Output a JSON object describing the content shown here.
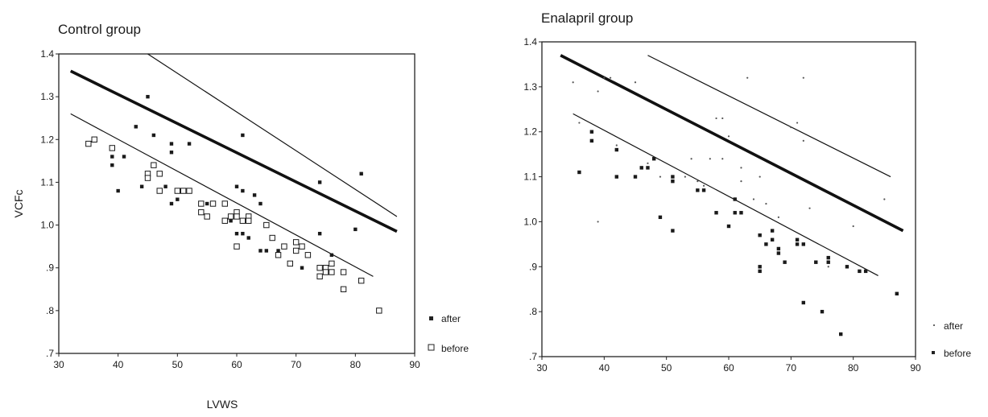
{
  "chart_data": [
    {
      "type": "scatter",
      "title": "Control group",
      "xlabel": "LVWS",
      "ylabel": "VCFc",
      "xlim": [
        30,
        90
      ],
      "ylim": [
        0.7,
        1.4
      ],
      "x_ticks": [
        "30",
        "40",
        "50",
        "60",
        "70",
        "80",
        "90"
      ],
      "y_ticks": [
        ".7",
        ".8",
        ".9",
        "1.0",
        "1.1",
        "1.2",
        "1.3",
        "1.4"
      ],
      "legend_position": "right",
      "series": [
        {
          "name": "after",
          "marker": "filled-square",
          "points": [
            [
              39,
              1.14
            ],
            [
              39,
              1.16
            ],
            [
              40,
              1.08
            ],
            [
              41,
              1.16
            ],
            [
              43,
              1.23
            ],
            [
              44,
              1.09
            ],
            [
              45,
              1.3
            ],
            [
              46,
              1.21
            ],
            [
              48,
              1.09
            ],
            [
              49,
              1.19
            ],
            [
              49,
              1.17
            ],
            [
              49,
              1.05
            ],
            [
              50,
              1.06
            ],
            [
              51,
              1.08
            ],
            [
              52,
              1.19
            ],
            [
              52,
              1.08
            ],
            [
              55,
              1.05
            ],
            [
              56,
              1.05
            ],
            [
              59,
              1.01
            ],
            [
              60,
              1.09
            ],
            [
              60,
              0.98
            ],
            [
              61,
              1.21
            ],
            [
              61,
              1.08
            ],
            [
              61,
              0.98
            ],
            [
              62,
              0.97
            ],
            [
              63,
              1.07
            ],
            [
              64,
              1.05
            ],
            [
              64,
              0.94
            ],
            [
              65,
              0.94
            ],
            [
              67,
              0.94
            ],
            [
              68,
              0.95
            ],
            [
              71,
              0.9
            ],
            [
              72,
              0.93
            ],
            [
              74,
              1.1
            ],
            [
              74,
              0.98
            ],
            [
              75,
              0.9
            ],
            [
              76,
              0.93
            ],
            [
              76,
              0.89
            ],
            [
              80,
              0.99
            ],
            [
              81,
              1.12
            ]
          ]
        },
        {
          "name": "before",
          "marker": "open-square",
          "points": [
            [
              35,
              1.19
            ],
            [
              36,
              1.2
            ],
            [
              39,
              1.18
            ],
            [
              45,
              1.12
            ],
            [
              45,
              1.11
            ],
            [
              46,
              1.14
            ],
            [
              47,
              1.12
            ],
            [
              47,
              1.08
            ],
            [
              50,
              1.08
            ],
            [
              51,
              1.08
            ],
            [
              52,
              1.08
            ],
            [
              54,
              1.05
            ],
            [
              54,
              1.03
            ],
            [
              55,
              1.02
            ],
            [
              56,
              1.05
            ],
            [
              58,
              1.05
            ],
            [
              58,
              1.01
            ],
            [
              59,
              1.02
            ],
            [
              60,
              1.03
            ],
            [
              60,
              1.02
            ],
            [
              60,
              0.95
            ],
            [
              61,
              1.01
            ],
            [
              62,
              1.02
            ],
            [
              62,
              1.01
            ],
            [
              65,
              1.0
            ],
            [
              66,
              0.97
            ],
            [
              67,
              0.93
            ],
            [
              68,
              0.95
            ],
            [
              69,
              0.91
            ],
            [
              70,
              0.96
            ],
            [
              70,
              0.94
            ],
            [
              71,
              0.95
            ],
            [
              72,
              0.93
            ],
            [
              74,
              0.9
            ],
            [
              74,
              0.88
            ],
            [
              75,
              0.9
            ],
            [
              75,
              0.89
            ],
            [
              76,
              0.91
            ],
            [
              76,
              0.89
            ],
            [
              78,
              0.89
            ],
            [
              78,
              0.85
            ],
            [
              81,
              0.87
            ],
            [
              84,
              0.8
            ]
          ]
        }
      ],
      "reference_lines": [
        {
          "style": "thick",
          "from": [
            32,
            1.36
          ],
          "to": [
            87,
            0.985
          ]
        },
        {
          "style": "thin",
          "from": [
            45,
            1.4
          ],
          "to": [
            87,
            1.02
          ]
        },
        {
          "style": "thin",
          "from": [
            32,
            1.26
          ],
          "to": [
            83,
            0.88
          ]
        }
      ]
    },
    {
      "type": "scatter",
      "title": "Enalapril group",
      "xlabel": "",
      "ylabel": "",
      "xlim": [
        30,
        90
      ],
      "ylim": [
        0.7,
        1.4
      ],
      "x_ticks": [
        "30",
        "40",
        "50",
        "60",
        "70",
        "80",
        "90"
      ],
      "y_ticks": [
        ".7",
        ".8",
        ".9",
        "1.0",
        "1.1",
        "1.2",
        "1.3",
        "1.4"
      ],
      "legend_position": "right",
      "series": [
        {
          "name": "after",
          "marker": "dot",
          "points": [
            [
              35,
              1.31
            ],
            [
              36,
              1.22
            ],
            [
              39,
              1.29
            ],
            [
              39,
              1.0
            ],
            [
              40,
              1.32
            ],
            [
              41,
              1.32
            ],
            [
              42,
              1.17
            ],
            [
              45,
              1.31
            ],
            [
              47,
              1.13
            ],
            [
              49,
              1.1
            ],
            [
              51,
              1.09
            ],
            [
              53,
              1.1
            ],
            [
              54,
              1.14
            ],
            [
              55,
              1.09
            ],
            [
              56,
              1.08
            ],
            [
              57,
              1.14
            ],
            [
              58,
              1.23
            ],
            [
              59,
              1.23
            ],
            [
              59,
              1.14
            ],
            [
              60,
              1.19
            ],
            [
              62,
              1.12
            ],
            [
              62,
              1.09
            ],
            [
              63,
              1.32
            ],
            [
              64,
              1.05
            ],
            [
              65,
              1.1
            ],
            [
              66,
              1.04
            ],
            [
              68,
              1.01
            ],
            [
              70,
              1.21
            ],
            [
              71,
              1.22
            ],
            [
              72,
              1.32
            ],
            [
              72,
              1.18
            ],
            [
              73,
              1.03
            ],
            [
              76,
              0.9
            ],
            [
              80,
              0.99
            ],
            [
              85,
              1.05
            ]
          ]
        },
        {
          "name": "before",
          "marker": "filled-square",
          "points": [
            [
              36,
              1.11
            ],
            [
              38,
              1.2
            ],
            [
              38,
              1.18
            ],
            [
              42,
              1.16
            ],
            [
              42,
              1.1
            ],
            [
              45,
              1.1
            ],
            [
              46,
              1.12
            ],
            [
              47,
              1.12
            ],
            [
              48,
              1.14
            ],
            [
              49,
              1.01
            ],
            [
              51,
              0.98
            ],
            [
              51,
              1.1
            ],
            [
              51,
              1.09
            ],
            [
              55,
              1.07
            ],
            [
              56,
              1.07
            ],
            [
              58,
              1.02
            ],
            [
              60,
              0.99
            ],
            [
              61,
              1.05
            ],
            [
              61,
              1.02
            ],
            [
              62,
              1.02
            ],
            [
              65,
              0.97
            ],
            [
              65,
              0.9
            ],
            [
              65,
              0.89
            ],
            [
              66,
              0.95
            ],
            [
              67,
              0.98
            ],
            [
              67,
              0.96
            ],
            [
              68,
              0.94
            ],
            [
              68,
              0.93
            ],
            [
              69,
              0.91
            ],
            [
              71,
              0.96
            ],
            [
              71,
              0.95
            ],
            [
              72,
              0.95
            ],
            [
              72,
              0.82
            ],
            [
              74,
              0.91
            ],
            [
              75,
              0.8
            ],
            [
              76,
              0.92
            ],
            [
              76,
              0.91
            ],
            [
              78,
              0.75
            ],
            [
              79,
              0.9
            ],
            [
              81,
              0.89
            ],
            [
              82,
              0.89
            ],
            [
              87,
              0.84
            ]
          ]
        }
      ],
      "reference_lines": [
        {
          "style": "thick",
          "from": [
            33,
            1.37
          ],
          "to": [
            88,
            0.98
          ]
        },
        {
          "style": "thin",
          "from": [
            47,
            1.37
          ],
          "to": [
            86,
            1.1
          ]
        },
        {
          "style": "thin",
          "from": [
            35,
            1.24
          ],
          "to": [
            84,
            0.88
          ]
        }
      ]
    }
  ]
}
